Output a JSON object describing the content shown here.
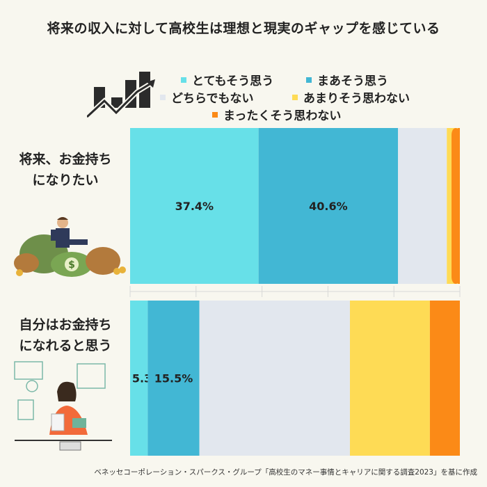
{
  "title": "将来の収入に対して高校生は理想と現実のギャップを感じている",
  "source": "ベネッセコーポレーション・スパークス・グループ「高校生のマネー事情とキャリアに関する調査2023」を基に作成",
  "colors": {
    "とてもそう思う": "#67e0e8",
    "まあそう思う": "#42b7d4",
    "どちらでもない": "#e2e7ee",
    "あまりそう思わない": "#fedb55",
    "まったくそう思わない": "#fb8a17"
  },
  "legend": [
    "とてもそう思う",
    "まあそう思う",
    "どちらでもない",
    "あまりそう思わない",
    "まったくそう思わない"
  ],
  "chart_data": {
    "type": "bar",
    "orientation": "horizontal-stacked-100",
    "title": "将来の収入に対して高校生は理想と現実のギャップを感じている",
    "categories": [
      "将来、お金持ちになりたい",
      "自分はお金持ちになれると思う"
    ],
    "category_lines": [
      [
        "将来、お金持ち",
        "になりたい"
      ],
      [
        "自分はお金持ち",
        "になれると思う"
      ]
    ],
    "series": [
      {
        "name": "とてもそう思う",
        "values": [
          37.4,
          5.3
        ],
        "labels": [
          "37.4%",
          "5.3%"
        ]
      },
      {
        "name": "まあそう思う",
        "values": [
          40.6,
          15.5
        ],
        "labels": [
          "40.6%",
          "15.5%"
        ]
      },
      {
        "name": "どちらでもない",
        "values": [
          14.2,
          45.2
        ],
        "labels": [
          "",
          ""
        ]
      },
      {
        "name": "あまりそう思わない",
        "values": [
          3.2,
          24.0
        ],
        "labels": [
          "",
          ""
        ]
      },
      {
        "name": "まったくそう思わない",
        "values": [
          0.6,
          9.0
        ],
        "labels": [
          "",
          ""
        ]
      }
    ],
    "xlim": [
      0,
      100
    ]
  }
}
